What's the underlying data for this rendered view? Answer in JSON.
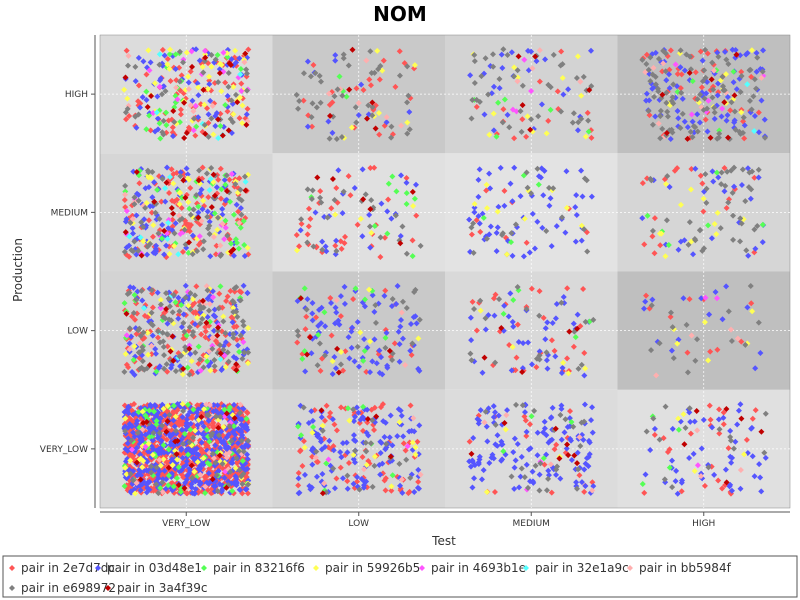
{
  "chart_data": {
    "type": "scatter",
    "title": "NOM",
    "xlabel": "Test",
    "ylabel": "Production",
    "x_categories": [
      "VERY_LOW",
      "LOW",
      "MEDIUM",
      "HIGH"
    ],
    "y_categories": [
      "VERY_LOW",
      "LOW",
      "MEDIUM",
      "HIGH"
    ],
    "grid": true,
    "jitter": true,
    "legend_position": "bottom",
    "series": [
      {
        "name": "pair in 2e7d7dc",
        "color": "#ff5555",
        "marker": "diamond"
      },
      {
        "name": "pair in 03d48e1",
        "color": "#5555ff",
        "marker": "diamond"
      },
      {
        "name": "pair in 83216f6",
        "color": "#55ff55",
        "marker": "diamond"
      },
      {
        "name": "pair in 59926b5",
        "color": "#ffff55",
        "marker": "diamond"
      },
      {
        "name": "pair in 4693b1e",
        "color": "#ff55ff",
        "marker": "diamond"
      },
      {
        "name": "pair in 32e1a9c",
        "color": "#55ffff",
        "marker": "diamond"
      },
      {
        "name": "pair in bb5984f",
        "color": "#ffafaf",
        "marker": "diamond"
      },
      {
        "name": "pair in e698972",
        "color": "#808080",
        "marker": "diamond"
      },
      {
        "name": "pair in 3a4f39c",
        "color": "#c00000",
        "marker": "diamond"
      }
    ],
    "cells": [
      {
        "test": "VERY_LOW",
        "production": "HIGH",
        "counts": [
          80,
          60,
          25,
          40,
          15,
          6,
          10,
          35,
          20
        ]
      },
      {
        "test": "LOW",
        "production": "HIGH",
        "counts": [
          25,
          12,
          3,
          8,
          0,
          0,
          6,
          40,
          6
        ]
      },
      {
        "test": "MEDIUM",
        "production": "HIGH",
        "counts": [
          15,
          25,
          6,
          12,
          4,
          0,
          4,
          40,
          5
        ]
      },
      {
        "test": "HIGH",
        "production": "HIGH",
        "counts": [
          40,
          80,
          5,
          12,
          6,
          2,
          10,
          90,
          10
        ]
      },
      {
        "test": "VERY_LOW",
        "production": "MEDIUM",
        "counts": [
          100,
          90,
          30,
          35,
          15,
          10,
          10,
          60,
          20
        ]
      },
      {
        "test": "LOW",
        "production": "MEDIUM",
        "counts": [
          35,
          25,
          10,
          5,
          0,
          0,
          0,
          25,
          6
        ]
      },
      {
        "test": "MEDIUM",
        "production": "MEDIUM",
        "counts": [
          10,
          60,
          4,
          10,
          0,
          0,
          0,
          20,
          0
        ]
      },
      {
        "test": "HIGH",
        "production": "MEDIUM",
        "counts": [
          20,
          25,
          6,
          12,
          0,
          0,
          0,
          40,
          0
        ]
      },
      {
        "test": "VERY_LOW",
        "production": "LOW",
        "counts": [
          110,
          90,
          20,
          25,
          10,
          5,
          10,
          100,
          15
        ]
      },
      {
        "test": "LOW",
        "production": "LOW",
        "counts": [
          25,
          75,
          12,
          6,
          0,
          0,
          4,
          20,
          6
        ]
      },
      {
        "test": "MEDIUM",
        "production": "LOW",
        "counts": [
          30,
          40,
          5,
          5,
          0,
          0,
          0,
          20,
          5
        ]
      },
      {
        "test": "HIGH",
        "production": "LOW",
        "counts": [
          10,
          15,
          0,
          6,
          2,
          0,
          4,
          15,
          0
        ]
      },
      {
        "test": "VERY_LOW",
        "production": "VERY_LOW",
        "counts": [
          900,
          500,
          60,
          40,
          5,
          0,
          20,
          50,
          20
        ]
      },
      {
        "test": "LOW",
        "production": "VERY_LOW",
        "counts": [
          70,
          120,
          10,
          12,
          2,
          0,
          6,
          20,
          5
        ]
      },
      {
        "test": "MEDIUM",
        "production": "VERY_LOW",
        "counts": [
          20,
          120,
          4,
          3,
          2,
          0,
          5,
          25,
          8
        ]
      },
      {
        "test": "HIGH",
        "production": "VERY_LOW",
        "counts": [
          25,
          50,
          4,
          4,
          1,
          0,
          3,
          15,
          6
        ]
      }
    ]
  }
}
